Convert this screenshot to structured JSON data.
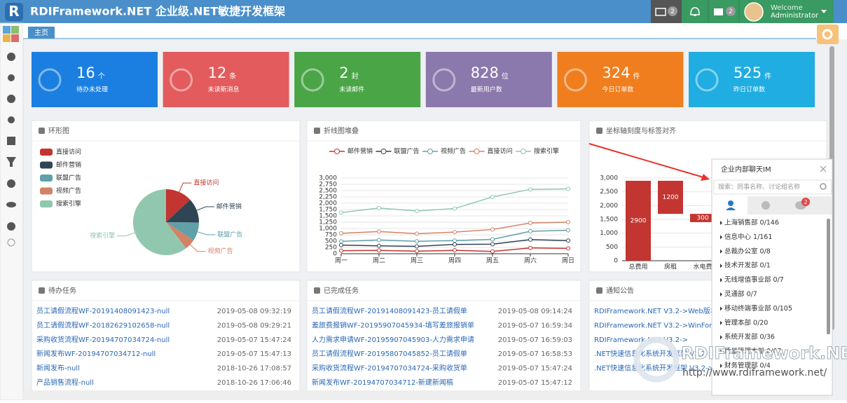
{
  "header": {
    "logo": "R",
    "title": "RDIFramework.NET 企业级.NET敏捷开发框架",
    "notice_badge": 2,
    "mail_badge": 2,
    "welcome": "Welcome",
    "user": "Administrator"
  },
  "tab": "主页",
  "stats": [
    {
      "value": 16,
      "unit": "个",
      "label": "待办未处理",
      "color": "#1b7fe2"
    },
    {
      "value": 12,
      "unit": "条",
      "label": "未读新消息",
      "color": "#e35b5c"
    },
    {
      "value": 2,
      "unit": "封",
      "label": "未读邮件",
      "color": "#4aa546"
    },
    {
      "value": 828,
      "unit": "位",
      "label": "最新用户数",
      "color": "#8b78ad"
    },
    {
      "value": 324,
      "unit": "件",
      "label": "今日订单数",
      "color": "#f07e1f"
    },
    {
      "value": 525,
      "unit": "件",
      "label": "昨日订单数",
      "color": "#1fade2"
    }
  ],
  "chart_data": [
    {
      "type": "pie",
      "title": "环形图",
      "categories": [
        "直接访问",
        "邮件营销",
        "联盟广告",
        "视频广告",
        "搜索引擎"
      ],
      "values": [
        335,
        310,
        234,
        135,
        1548
      ],
      "colors": [
        "#c23531",
        "#2f4554",
        "#61a0a8",
        "#d48265",
        "#91c7ae"
      ]
    },
    {
      "type": "line",
      "title": "折线图堆叠",
      "stacked": true,
      "categories": [
        "周一",
        "周二",
        "周三",
        "周四",
        "周五",
        "周六",
        "周日"
      ],
      "series": [
        {
          "name": "邮件营销",
          "color": "#c23531",
          "values": [
            120,
            132,
            101,
            134,
            90,
            230,
            210
          ]
        },
        {
          "name": "联盟广告",
          "color": "#2f4554",
          "values": [
            220,
            182,
            191,
            234,
            290,
            330,
            310
          ]
        },
        {
          "name": "视频广告",
          "color": "#61a0a8",
          "values": [
            150,
            232,
            201,
            154,
            190,
            330,
            410
          ]
        },
        {
          "name": "直接访问",
          "color": "#d48265",
          "values": [
            320,
            332,
            301,
            334,
            390,
            330,
            320
          ]
        },
        {
          "name": "搜索引擎",
          "color": "#91c7ae",
          "values": [
            820,
            932,
            901,
            934,
            1290,
            1330,
            1320
          ]
        }
      ],
      "ylim": [
        0,
        3000
      ],
      "yticks": [
        0,
        250,
        500,
        750,
        {
          "value": 1000,
          "label": "1,000"
        },
        {
          "value": 1250,
          "label": "1,250"
        },
        {
          "value": 1500,
          "label": "1,500"
        },
        {
          "value": 1750,
          "label": "1,750"
        },
        {
          "value": 2000,
          "label": "2,000"
        },
        {
          "value": 2250,
          "label": "2,250"
        },
        {
          "value": 2500,
          "label": "2,500"
        },
        {
          "value": 2750,
          "label": "2,750"
        },
        {
          "value": 3000,
          "label": "3,000"
        }
      ],
      "grid": true
    },
    {
      "type": "waterfall",
      "title": "坐标轴刻度与标签对齐",
      "categories": [
        "总费用",
        "房租",
        "水电费"
      ],
      "values": [
        2900,
        1200,
        300
      ],
      "color": "#c23531",
      "ylim": [
        0,
        3000
      ],
      "yticks": [
        0,
        500,
        {
          "value": 1000,
          "label": "1,000"
        },
        {
          "value": 1500,
          "label": "1,500"
        },
        {
          "value": 2000,
          "label": "2,000"
        },
        {
          "value": 2500,
          "label": "2,500"
        },
        {
          "value": 3000,
          "label": "3,000"
        }
      ],
      "grid": true
    }
  ],
  "lists": [
    {
      "title": "待办任务",
      "rows": [
        {
          "text": "员工请假流程WF-20191408091423-null",
          "time": "2019-05-08 09:32:19"
        },
        {
          "text": "员工请假流程WF-20182629102658-null",
          "time": "2019-05-08 09:29:21"
        },
        {
          "text": "采购收货流程WF-20194707034724-null",
          "time": "2019-05-07 15:47:24"
        },
        {
          "text": "新闻发布WF-20194707034712-null",
          "time": "2019-05-07 15:47:13"
        },
        {
          "text": "新闻发布-null",
          "time": "2018-10-26 17:08:57"
        },
        {
          "text": "产品销售流程-null",
          "time": "2018-10-26 17:06:46"
        }
      ]
    },
    {
      "title": "已完成任务",
      "rows": [
        {
          "text": "员工请假流程WF-20191408091423-员工请假单",
          "time": "2019-05-08 09:14:24"
        },
        {
          "text": "差旅费报销WF-20195907045934-填写差旅报销单",
          "time": "2019-05-07 16:59:34"
        },
        {
          "text": "人力需求申请WF-20195907045903-人力需求申请",
          "time": "2019-05-07 16:59:03"
        },
        {
          "text": "员工请假流程WF-20195807045852-员工请假单",
          "time": "2019-05-07 16:58:53"
        },
        {
          "text": "采购收货流程WF-20194707034724-采购收货单",
          "time": "2019-05-07 15:47:24"
        },
        {
          "text": "新闻发布WF-20194707034712-新建新闻稿",
          "time": "2019-05-07 15:47:12"
        }
      ]
    },
    {
      "title": "通知公告",
      "rows": [
        {
          "text": "RDIFramework.NET V3.2->Web版本"
        },
        {
          "text": "RDIFramework.NET V3.2->WinForm"
        },
        {
          "text": "RDIFramework.NET V3.2->"
        },
        {
          "text": ".NET快速信息化系统开发框架 V3.2->"
        },
        {
          "text": ".NET快速信息化系统开发框架 V3.2->"
        }
      ]
    }
  ],
  "im": {
    "title": "企业内部聊天IM",
    "search": "搜索：同事名称、讨论组名称",
    "badge": 2,
    "groups": [
      "上海销售部 0/146",
      "信息中心 1/161",
      "总裁办公室 0/8",
      "技术开发部 0/1",
      "无线增值事业部 0/7",
      "灵通部 0/7",
      "移动终端事业部 0/105",
      "管理本部 0/20",
      "系统开发部 0/36",
      "质量管理本部 0/67",
      "财务管理部 0/4"
    ]
  },
  "watermark": {
    "name": "RDIFramework.NET",
    "url": "http://www.rdiframework.net/"
  }
}
